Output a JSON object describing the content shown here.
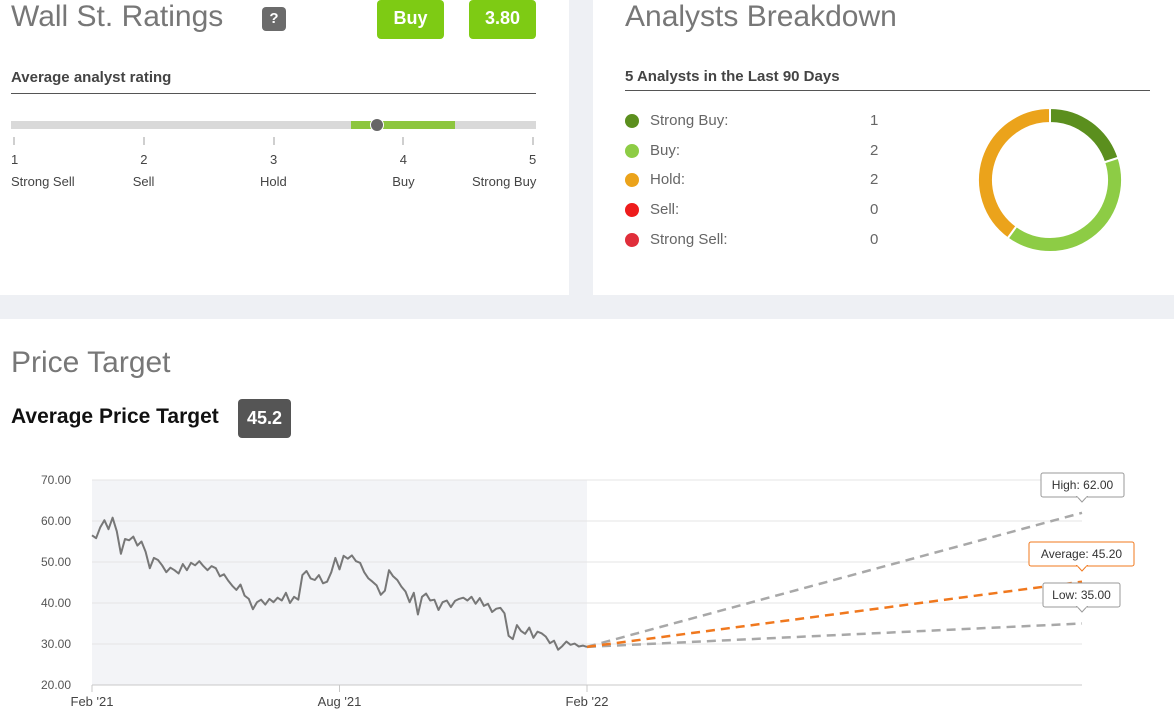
{
  "ratings": {
    "title": "Wall St. Ratings",
    "help_glyph": "?",
    "rating_label": "Buy",
    "rating_value": "3.80",
    "avg_heading": "Average analyst rating",
    "scale": [
      {
        "num": "1",
        "label": "Strong Sell"
      },
      {
        "num": "2",
        "label": "Sell"
      },
      {
        "num": "3",
        "label": "Hold"
      },
      {
        "num": "4",
        "label": "Buy"
      },
      {
        "num": "5",
        "label": "Strong Buy"
      }
    ],
    "marker_value": 3.8,
    "band_range": [
      3.6,
      4.4
    ],
    "scale_range": [
      1,
      5
    ]
  },
  "breakdown": {
    "title": "Analysts Breakdown",
    "subtitle": "5 Analysts in the Last 90 Days",
    "items": [
      {
        "label": "Strong Buy:",
        "value": "1",
        "count": 1,
        "color": "#5b8f1e"
      },
      {
        "label": "Buy:",
        "value": "2",
        "count": 2,
        "color": "#8dcc45"
      },
      {
        "label": "Hold:",
        "value": "2",
        "count": 2,
        "color": "#eba31b"
      },
      {
        "label": "Sell:",
        "value": "0",
        "count": 0,
        "color": "#ee1c1c"
      },
      {
        "label": "Strong Sell:",
        "value": "0",
        "count": 0,
        "color": "#e02e3a"
      }
    ]
  },
  "price_target": {
    "title": "Price Target",
    "avg_label": "Average Price Target",
    "avg_value": "45.2"
  },
  "chart_data": {
    "type": "line",
    "y_ticks": [
      "70.00",
      "60.00",
      "50.00",
      "40.00",
      "30.00",
      "20.00"
    ],
    "ylim": [
      20,
      70
    ],
    "x_ticks": [
      {
        "label": "Feb '21",
        "month": 0
      },
      {
        "label": "Aug '21",
        "month": 6
      },
      {
        "label": "Feb '22",
        "month": 12
      }
    ],
    "xlim_months": [
      0,
      24
    ],
    "price_series": {
      "x": [
        0,
        0.1,
        0.2,
        0.3,
        0.4,
        0.5,
        0.6,
        0.7,
        0.8,
        0.9,
        1.0,
        1.1,
        1.2,
        1.3,
        1.4,
        1.5,
        1.6,
        1.7,
        1.8,
        1.9,
        2.0,
        2.1,
        2.2,
        2.3,
        2.4,
        2.5,
        2.6,
        2.7,
        2.8,
        2.9,
        3.0,
        3.1,
        3.2,
        3.3,
        3.4,
        3.5,
        3.6,
        3.7,
        3.8,
        3.9,
        4.0,
        4.1,
        4.2,
        4.3,
        4.4,
        4.5,
        4.6,
        4.7,
        4.8,
        4.9,
        5.0,
        5.1,
        5.2,
        5.3,
        5.4,
        5.5,
        5.6,
        5.7,
        5.8,
        5.9,
        6.0,
        6.1,
        6.2,
        6.3,
        6.4,
        6.5,
        6.6,
        6.7,
        6.8,
        6.9,
        7.0,
        7.1,
        7.2,
        7.3,
        7.4,
        7.5,
        7.6,
        7.7,
        7.8,
        7.9,
        8.0,
        8.1,
        8.2,
        8.3,
        8.4,
        8.5,
        8.6,
        8.7,
        8.8,
        8.9,
        9.0,
        9.1,
        9.2,
        9.3,
        9.4,
        9.5,
        9.6,
        9.7,
        9.8,
        9.9,
        10.0,
        10.1,
        10.2,
        10.3,
        10.4,
        10.5,
        10.6,
        10.7,
        10.8,
        10.9,
        11.0,
        11.1,
        11.2,
        11.3,
        11.4,
        11.5,
        11.6,
        11.7,
        11.8,
        11.9,
        12.0
      ],
      "y": [
        56.5,
        55.8,
        58.5,
        60.2,
        58.0,
        60.8,
        57.5,
        52.0,
        55.6,
        55.3,
        56.2,
        54.0,
        55.0,
        52.5,
        48.5,
        51.0,
        50.5,
        49.2,
        47.5,
        48.6,
        48.0,
        47.2,
        49.5,
        48.0,
        49.8,
        49.2,
        50.2,
        49.0,
        48.0,
        49.0,
        48.5,
        46.5,
        47.0,
        45.5,
        44.2,
        43.2,
        44.5,
        41.8,
        41.0,
        38.5,
        40.2,
        40.8,
        39.6,
        41.0,
        40.2,
        41.3,
        40.6,
        42.5,
        40.0,
        41.5,
        40.8,
        46.8,
        47.8,
        46.0,
        45.6,
        46.8,
        44.8,
        45.2,
        47.5,
        51.0,
        48.2,
        51.5,
        50.8,
        51.6,
        50.2,
        49.8,
        47.5,
        46.0,
        45.2,
        44.3,
        42.0,
        43.0,
        48.0,
        46.5,
        45.6,
        44.0,
        42.8,
        40.2,
        42.5,
        37.2,
        41.5,
        42.3,
        40.6,
        40.8,
        38.3,
        40.2,
        40.6,
        39.0,
        40.5,
        41.0,
        41.3,
        40.6,
        41.5,
        39.8,
        41.2,
        39.3,
        39.8,
        37.8,
        38.6,
        38.8,
        37.5,
        32.0,
        31.2,
        34.6,
        33.2,
        32.5,
        34.0,
        31.5,
        33.0,
        32.6,
        31.8,
        30.2,
        30.8,
        28.6,
        29.5,
        30.6,
        29.8,
        30.1,
        29.4,
        29.6,
        29.3
      ],
      "color": "#777777"
    },
    "forecast": {
      "start_month": 12,
      "start_value": 29.3,
      "end_month": 24,
      "high": {
        "label": "High: 62.00",
        "value": 62.0,
        "color": "#a8a8a8"
      },
      "average": {
        "label": "Average: 45.20",
        "value": 45.2,
        "color": "#f0781e"
      },
      "low": {
        "label": "Low: 35.00",
        "value": 35.0,
        "color": "#a8a8a8"
      }
    },
    "shaded_history": true,
    "grid": true
  }
}
